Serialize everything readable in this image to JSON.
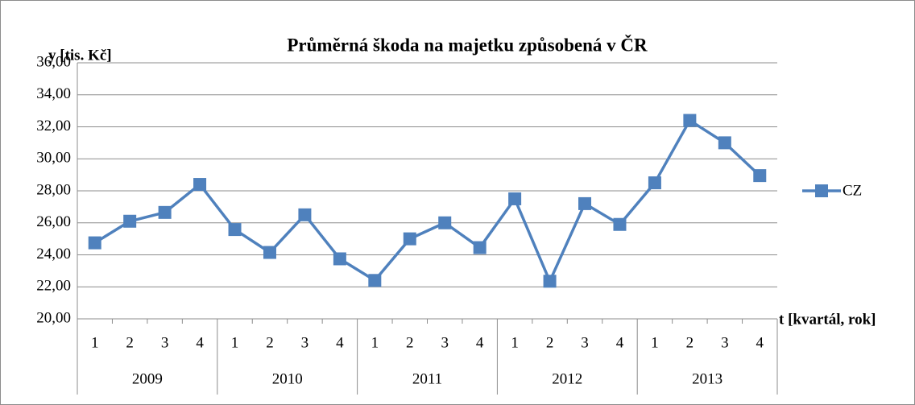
{
  "chart_data": {
    "type": "line",
    "title": "Průměrná škoda na majetku způsobená v ČR",
    "y_label": "y [tis. Kč]",
    "x_label": "t [kvartál, rok]",
    "categories": [
      "1",
      "2",
      "3",
      "4",
      "1",
      "2",
      "3",
      "4",
      "1",
      "2",
      "3",
      "4",
      "1",
      "2",
      "3",
      "4",
      "1",
      "2",
      "3",
      "4"
    ],
    "category_groups": [
      "2009",
      "2010",
      "2011",
      "2012",
      "2013"
    ],
    "series": [
      {
        "name": "CZ",
        "color": "#4f81bd",
        "values": [
          24.75,
          26.1,
          26.65,
          28.4,
          25.58,
          24.15,
          26.5,
          23.75,
          22.4,
          25.0,
          26.0,
          24.45,
          27.5,
          22.35,
          27.2,
          25.9,
          28.5,
          32.4,
          31.0,
          28.95
        ]
      }
    ],
    "ylim": [
      20,
      36
    ],
    "yticks": [
      {
        "value": 20,
        "label": "20,00"
      },
      {
        "value": 22,
        "label": "22,00"
      },
      {
        "value": 24,
        "label": "24,00"
      },
      {
        "value": 26,
        "label": "26,00"
      },
      {
        "value": 28,
        "label": "28,00"
      },
      {
        "value": 30,
        "label": "30,00"
      },
      {
        "value": 32,
        "label": "32,00"
      },
      {
        "value": 34,
        "label": "34,00"
      },
      {
        "value": 36,
        "label": "36,00"
      }
    ],
    "grid": true,
    "legend": "right"
  }
}
